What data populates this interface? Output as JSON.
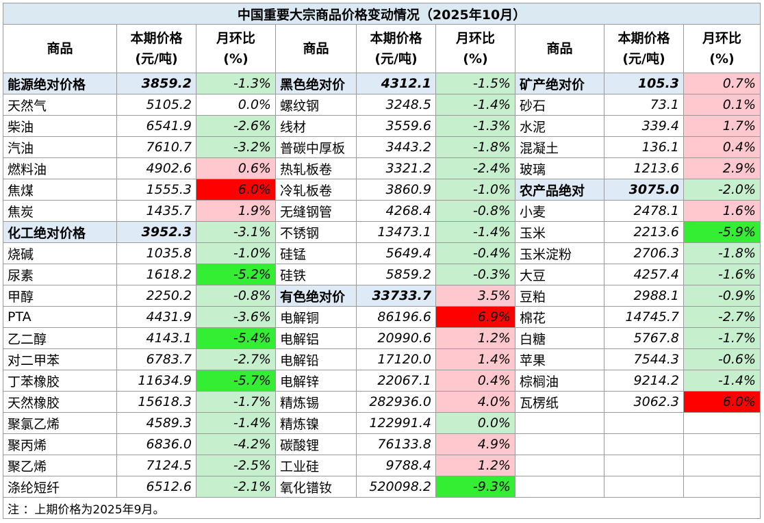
{
  "title": "中国重要大宗商品价格变动情况（2025年10月）",
  "headers": {
    "name": "商品",
    "price_l1": "本期价格",
    "price_l2": "(元/吨)",
    "chg_l1": "月环比",
    "chg_l2": "(%)"
  },
  "colors": {
    "category_bg": "#deebf6",
    "light_green": "#c6efce",
    "bright_green": "#33ee33",
    "light_red": "#ffc7ce",
    "bright_red": "#ff0000",
    "white": "#ffffff"
  },
  "rows": [
    [
      {
        "name": "能源绝对价格",
        "price": "3859.2",
        "change": "-1.3%",
        "cat": true,
        "bg": "light_green"
      },
      {
        "name": "黑色绝对价",
        "price": "4312.1",
        "change": "-1.5%",
        "cat": true,
        "bg": "light_green"
      },
      {
        "name": "矿产绝对价",
        "price": "105.3",
        "change": "0.7%",
        "cat": true,
        "bg": "light_red"
      }
    ],
    [
      {
        "name": "天然气",
        "price": "5105.2",
        "change": "0.0%",
        "bg": "white"
      },
      {
        "name": "螺纹钢",
        "price": "3248.5",
        "change": "-1.4%",
        "bg": "light_green"
      },
      {
        "name": "砂石",
        "price": "73.1",
        "change": "0.1%",
        "bg": "light_red"
      }
    ],
    [
      {
        "name": "柴油",
        "price": "6541.9",
        "change": "-2.6%",
        "bg": "light_green"
      },
      {
        "name": "线材",
        "price": "3559.6",
        "change": "-1.3%",
        "bg": "light_green"
      },
      {
        "name": "水泥",
        "price": "339.4",
        "change": "1.7%",
        "bg": "light_red"
      }
    ],
    [
      {
        "name": "汽油",
        "price": "7610.7",
        "change": "-3.2%",
        "bg": "light_green"
      },
      {
        "name": "普碳中厚板",
        "price": "3443.2",
        "change": "-1.8%",
        "bg": "light_green"
      },
      {
        "name": "混凝土",
        "price": "136.1",
        "change": "0.4%",
        "bg": "light_red"
      }
    ],
    [
      {
        "name": "燃料油",
        "price": "4902.6",
        "change": "0.6%",
        "bg": "light_red"
      },
      {
        "name": "热轧板卷",
        "price": "3321.2",
        "change": "-2.4%",
        "bg": "light_green"
      },
      {
        "name": "玻璃",
        "price": "1213.6",
        "change": "2.9%",
        "bg": "light_red"
      }
    ],
    [
      {
        "name": "焦煤",
        "price": "1555.3",
        "change": "6.0%",
        "bg": "bright_red"
      },
      {
        "name": "冷轧板卷",
        "price": "3860.9",
        "change": "-1.0%",
        "bg": "light_green"
      },
      {
        "name": "农产品绝对",
        "price": "3075.0",
        "change": "-2.0%",
        "cat": true,
        "bg": "light_green"
      }
    ],
    [
      {
        "name": "焦炭",
        "price": "1435.7",
        "change": "1.9%",
        "bg": "light_red"
      },
      {
        "name": "无缝钢管",
        "price": "4268.4",
        "change": "-0.8%",
        "bg": "light_green"
      },
      {
        "name": "小麦",
        "price": "2478.1",
        "change": "1.6%",
        "bg": "light_red"
      }
    ],
    [
      {
        "name": "化工绝对价格",
        "price": "3952.3",
        "change": "-3.1%",
        "cat": true,
        "bg": "light_green"
      },
      {
        "name": "不锈钢",
        "price": "13473.1",
        "change": "-1.4%",
        "bg": "light_green"
      },
      {
        "name": "玉米",
        "price": "2213.6",
        "change": "-5.9%",
        "bg": "bright_green"
      }
    ],
    [
      {
        "name": "烧碱",
        "price": "1035.8",
        "change": "-1.0%",
        "bg": "light_green"
      },
      {
        "name": "硅锰",
        "price": "5649.4",
        "change": "-0.4%",
        "bg": "light_green"
      },
      {
        "name": "玉米淀粉",
        "price": "2706.3",
        "change": "-1.8%",
        "bg": "light_green"
      }
    ],
    [
      {
        "name": "尿素",
        "price": "1618.2",
        "change": "-5.2%",
        "bg": "bright_green"
      },
      {
        "name": "硅铁",
        "price": "5859.2",
        "change": "-0.3%",
        "bg": "light_green"
      },
      {
        "name": "大豆",
        "price": "4257.4",
        "change": "-1.6%",
        "bg": "light_green"
      }
    ],
    [
      {
        "name": "甲醇",
        "price": "2250.2",
        "change": "-0.8%",
        "bg": "light_green"
      },
      {
        "name": "有色绝对价",
        "price": "33733.7",
        "change": "3.5%",
        "cat": true,
        "bg": "light_red"
      },
      {
        "name": "豆粕",
        "price": "2988.1",
        "change": "-0.9%",
        "bg": "light_green"
      }
    ],
    [
      {
        "name": "PTA",
        "price": "4431.9",
        "change": "-3.6%",
        "bg": "light_green"
      },
      {
        "name": "电解铜",
        "price": "86196.6",
        "change": "6.9%",
        "bg": "bright_red"
      },
      {
        "name": "棉花",
        "price": "14745.7",
        "change": "-2.7%",
        "bg": "light_green"
      }
    ],
    [
      {
        "name": "乙二醇",
        "price": "4143.1",
        "change": "-5.4%",
        "bg": "bright_green"
      },
      {
        "name": "电解铝",
        "price": "20990.6",
        "change": "1.2%",
        "bg": "light_red"
      },
      {
        "name": "白糖",
        "price": "5767.8",
        "change": "-1.7%",
        "bg": "light_green"
      }
    ],
    [
      {
        "name": "对二甲苯",
        "price": "6783.7",
        "change": "-2.7%",
        "bg": "light_green"
      },
      {
        "name": "电解铅",
        "price": "17120.0",
        "change": "1.4%",
        "bg": "light_red"
      },
      {
        "name": "苹果",
        "price": "7544.3",
        "change": "-0.6%",
        "bg": "light_green"
      }
    ],
    [
      {
        "name": "丁苯橡胶",
        "price": "11634.9",
        "change": "-5.7%",
        "bg": "bright_green"
      },
      {
        "name": "电解锌",
        "price": "22067.1",
        "change": "0.4%",
        "bg": "light_red"
      },
      {
        "name": "棕榈油",
        "price": "9214.2",
        "change": "-1.4%",
        "bg": "light_green"
      }
    ],
    [
      {
        "name": "天然橡胶",
        "price": "15618.3",
        "change": "-1.7%",
        "bg": "light_green"
      },
      {
        "name": "精炼锡",
        "price": "282936.0",
        "change": "4.0%",
        "bg": "light_red"
      },
      {
        "name": "瓦楞纸",
        "price": "3062.3",
        "change": "6.0%",
        "bg": "bright_red"
      }
    ],
    [
      {
        "name": "聚氯乙烯",
        "price": "4589.3",
        "change": "-1.4%",
        "bg": "light_green"
      },
      {
        "name": "精炼镍",
        "price": "122991.4",
        "change": "0.0%",
        "bg": "light_green"
      },
      {
        "name": "",
        "price": "",
        "change": "",
        "bg": "white"
      }
    ],
    [
      {
        "name": "聚丙烯",
        "price": "6836.0",
        "change": "-4.2%",
        "bg": "light_green"
      },
      {
        "name": "碳酸锂",
        "price": "76133.8",
        "change": "4.9%",
        "bg": "light_red"
      },
      {
        "name": "",
        "price": "",
        "change": "",
        "bg": "white"
      }
    ],
    [
      {
        "name": "聚乙烯",
        "price": "7124.5",
        "change": "-2.5%",
        "bg": "light_green"
      },
      {
        "name": "工业硅",
        "price": "9788.4",
        "change": "1.2%",
        "bg": "light_red"
      },
      {
        "name": "",
        "price": "",
        "change": "",
        "bg": "white"
      }
    ],
    [
      {
        "name": "涤纶短纤",
        "price": "6512.6",
        "change": "-2.1%",
        "bg": "light_green"
      },
      {
        "name": "氧化镨钕",
        "price": "520098.2",
        "change": "-9.3%",
        "bg": "bright_green"
      },
      {
        "name": "",
        "price": "",
        "change": "",
        "bg": "white"
      }
    ]
  ],
  "note": "注 ：上期价格为2025年9月。"
}
